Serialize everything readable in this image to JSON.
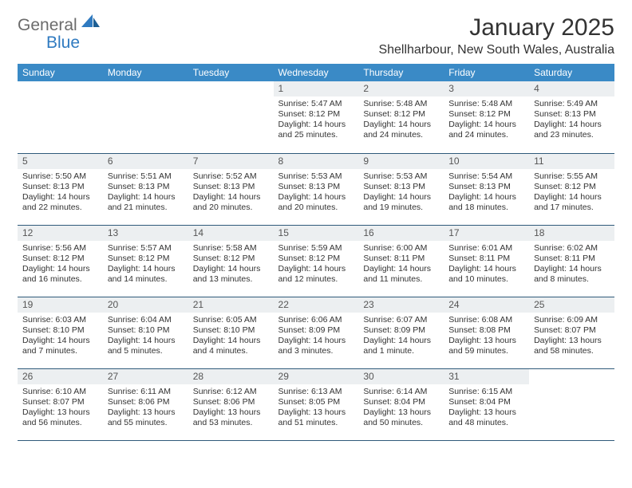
{
  "logo": {
    "textGeneral": "General",
    "textBlue": "Blue",
    "sailColor": "#2f7ac0",
    "grayColor": "#6b6b6b"
  },
  "header": {
    "monthTitle": "January 2025",
    "location": "Shellharbour, New South Wales, Australia"
  },
  "style": {
    "headerBg": "#3a8ac6",
    "headerText": "#ffffff",
    "dayNumBg": "#eceff1",
    "borderColor": "#2f5a7a",
    "bodyText": "#333333",
    "fontSizeHeader": 12,
    "fontSizeBody": 10.5
  },
  "dayNames": [
    "Sunday",
    "Monday",
    "Tuesday",
    "Wednesday",
    "Thursday",
    "Friday",
    "Saturday"
  ],
  "weeks": [
    [
      null,
      null,
      null,
      {
        "n": "1",
        "sr": "5:47 AM",
        "ss": "8:12 PM",
        "dl": "14 hours and 25 minutes."
      },
      {
        "n": "2",
        "sr": "5:48 AM",
        "ss": "8:12 PM",
        "dl": "14 hours and 24 minutes."
      },
      {
        "n": "3",
        "sr": "5:48 AM",
        "ss": "8:12 PM",
        "dl": "14 hours and 24 minutes."
      },
      {
        "n": "4",
        "sr": "5:49 AM",
        "ss": "8:13 PM",
        "dl": "14 hours and 23 minutes."
      }
    ],
    [
      {
        "n": "5",
        "sr": "5:50 AM",
        "ss": "8:13 PM",
        "dl": "14 hours and 22 minutes."
      },
      {
        "n": "6",
        "sr": "5:51 AM",
        "ss": "8:13 PM",
        "dl": "14 hours and 21 minutes."
      },
      {
        "n": "7",
        "sr": "5:52 AM",
        "ss": "8:13 PM",
        "dl": "14 hours and 20 minutes."
      },
      {
        "n": "8",
        "sr": "5:53 AM",
        "ss": "8:13 PM",
        "dl": "14 hours and 20 minutes."
      },
      {
        "n": "9",
        "sr": "5:53 AM",
        "ss": "8:13 PM",
        "dl": "14 hours and 19 minutes."
      },
      {
        "n": "10",
        "sr": "5:54 AM",
        "ss": "8:13 PM",
        "dl": "14 hours and 18 minutes."
      },
      {
        "n": "11",
        "sr": "5:55 AM",
        "ss": "8:12 PM",
        "dl": "14 hours and 17 minutes."
      }
    ],
    [
      {
        "n": "12",
        "sr": "5:56 AM",
        "ss": "8:12 PM",
        "dl": "14 hours and 16 minutes."
      },
      {
        "n": "13",
        "sr": "5:57 AM",
        "ss": "8:12 PM",
        "dl": "14 hours and 14 minutes."
      },
      {
        "n": "14",
        "sr": "5:58 AM",
        "ss": "8:12 PM",
        "dl": "14 hours and 13 minutes."
      },
      {
        "n": "15",
        "sr": "5:59 AM",
        "ss": "8:12 PM",
        "dl": "14 hours and 12 minutes."
      },
      {
        "n": "16",
        "sr": "6:00 AM",
        "ss": "8:11 PM",
        "dl": "14 hours and 11 minutes."
      },
      {
        "n": "17",
        "sr": "6:01 AM",
        "ss": "8:11 PM",
        "dl": "14 hours and 10 minutes."
      },
      {
        "n": "18",
        "sr": "6:02 AM",
        "ss": "8:11 PM",
        "dl": "14 hours and 8 minutes."
      }
    ],
    [
      {
        "n": "19",
        "sr": "6:03 AM",
        "ss": "8:10 PM",
        "dl": "14 hours and 7 minutes."
      },
      {
        "n": "20",
        "sr": "6:04 AM",
        "ss": "8:10 PM",
        "dl": "14 hours and 5 minutes."
      },
      {
        "n": "21",
        "sr": "6:05 AM",
        "ss": "8:10 PM",
        "dl": "14 hours and 4 minutes."
      },
      {
        "n": "22",
        "sr": "6:06 AM",
        "ss": "8:09 PM",
        "dl": "14 hours and 3 minutes."
      },
      {
        "n": "23",
        "sr": "6:07 AM",
        "ss": "8:09 PM",
        "dl": "14 hours and 1 minute."
      },
      {
        "n": "24",
        "sr": "6:08 AM",
        "ss": "8:08 PM",
        "dl": "13 hours and 59 minutes."
      },
      {
        "n": "25",
        "sr": "6:09 AM",
        "ss": "8:07 PM",
        "dl": "13 hours and 58 minutes."
      }
    ],
    [
      {
        "n": "26",
        "sr": "6:10 AM",
        "ss": "8:07 PM",
        "dl": "13 hours and 56 minutes."
      },
      {
        "n": "27",
        "sr": "6:11 AM",
        "ss": "8:06 PM",
        "dl": "13 hours and 55 minutes."
      },
      {
        "n": "28",
        "sr": "6:12 AM",
        "ss": "8:06 PM",
        "dl": "13 hours and 53 minutes."
      },
      {
        "n": "29",
        "sr": "6:13 AM",
        "ss": "8:05 PM",
        "dl": "13 hours and 51 minutes."
      },
      {
        "n": "30",
        "sr": "6:14 AM",
        "ss": "8:04 PM",
        "dl": "13 hours and 50 minutes."
      },
      {
        "n": "31",
        "sr": "6:15 AM",
        "ss": "8:04 PM",
        "dl": "13 hours and 48 minutes."
      },
      null
    ]
  ],
  "labels": {
    "sunrise": "Sunrise:",
    "sunset": "Sunset:",
    "daylight": "Daylight:"
  }
}
